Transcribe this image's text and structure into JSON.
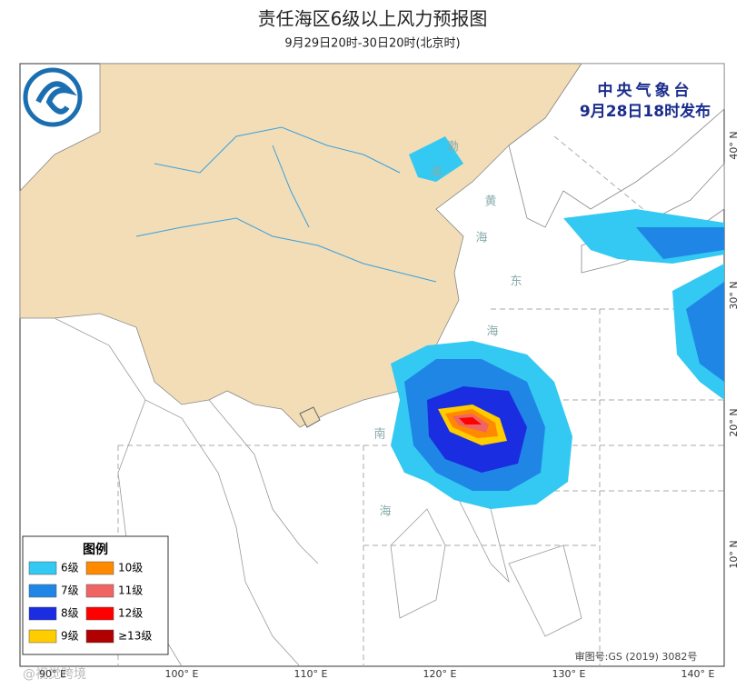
{
  "header": {
    "title": "责任海区6级以上风力预报图",
    "subtitle": "9月29日20时-30日20时(北京时)"
  },
  "agency": {
    "name": "中央气象台",
    "issued": "9月28日18时发布"
  },
  "legend": {
    "title": "图例",
    "items": [
      {
        "label": "6级",
        "color": "#33c9f2"
      },
      {
        "label": "7级",
        "color": "#1f86e6"
      },
      {
        "label": "8级",
        "color": "#1a2de0"
      },
      {
        "label": "9级",
        "color": "#ffcc00"
      },
      {
        "label": "10级",
        "color": "#ff8a00"
      },
      {
        "label": "11级",
        "color": "#f06464"
      },
      {
        "label": "12级",
        "color": "#ff0000"
      },
      {
        "label": "≥13级",
        "color": "#b00000"
      }
    ]
  },
  "lon_labels": [
    "90° E",
    "100° E",
    "110° E",
    "120° E",
    "130° E",
    "140° E"
  ],
  "lat_labels": [
    "40° N",
    "30° N",
    "20° N",
    "10° N"
  ],
  "sea_labels": [
    "渤",
    "海",
    "黄",
    "海",
    "东",
    "海",
    "南",
    "海"
  ],
  "map_number": "审图号:GS (2019) 3082号",
  "watermark": "@视觉跨境"
}
